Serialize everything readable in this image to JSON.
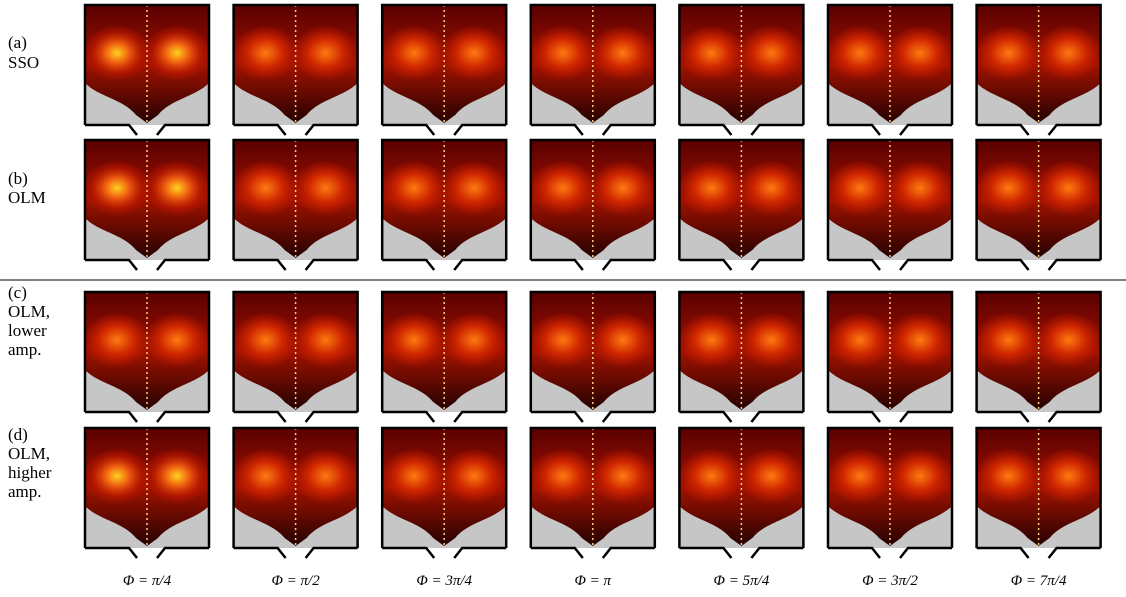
{
  "rows": [
    {
      "label": [
        "(a)",
        "SSO"
      ]
    },
    {
      "label": [
        "(b)",
        "OLM"
      ]
    },
    {
      "label": [
        "(c)",
        "OLM,",
        "lower",
        "amp."
      ]
    },
    {
      "label": [
        "(d)",
        "OLM,",
        "higher",
        "amp."
      ]
    }
  ],
  "columns": [
    "Φ = π/4",
    "Φ = π/2",
    "Φ = 3π/4",
    "Φ = π",
    "Φ = 5π/4",
    "Φ = 3π/2",
    "Φ = 7π/4"
  ]
}
